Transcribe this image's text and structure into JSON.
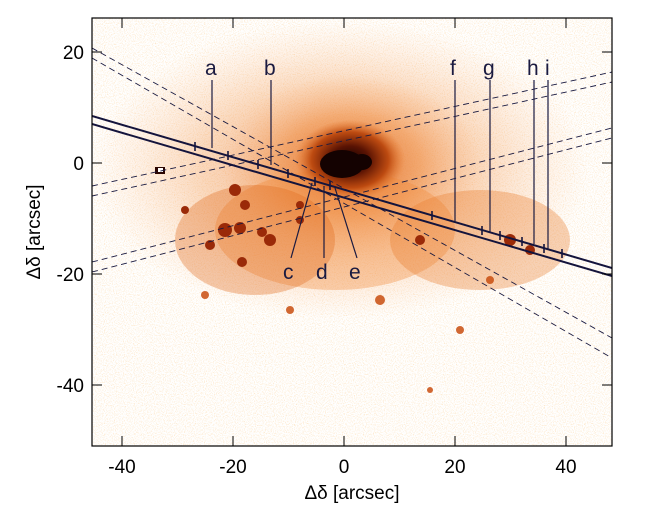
{
  "figure": {
    "xlabel": "Δδ [arcsec]",
    "ylabel": "Δδ [arcsec]",
    "xticks": [
      "-40",
      "-20",
      "0",
      "20",
      "40"
    ],
    "yticks": [
      "20",
      "0",
      "-20",
      "-40"
    ],
    "xlim": [
      -46,
      48
    ],
    "ylim": [
      -51,
      26
    ],
    "colormap": [
      "#ffffff",
      "#f6a45c",
      "#d9590f",
      "#8b1e06",
      "#1a0402"
    ],
    "slit_color": "#14143c",
    "image_content": "Pseudo-color galaxy image with bright nucleus near (0,0) and knotty structure along a long slit crossing from upper-left to lower-right."
  },
  "labels": [
    {
      "text": "a",
      "value_x": -24,
      "value_y": 2
    },
    {
      "text": "b",
      "value_x": -13,
      "value_y": 0
    },
    {
      "text": "c",
      "value_x": -5,
      "value_y": -4
    },
    {
      "text": "d",
      "value_x": -4,
      "value_y": -4
    },
    {
      "text": "e",
      "value_x": -2,
      "value_y": -5
    },
    {
      "text": "f",
      "value_x": 20,
      "value_y": -11
    },
    {
      "text": "g",
      "value_x": 26,
      "value_y": -13
    },
    {
      "text": "h",
      "value_x": 34,
      "value_y": -16
    },
    {
      "text": "i",
      "value_x": 37,
      "value_y": -17
    }
  ]
}
